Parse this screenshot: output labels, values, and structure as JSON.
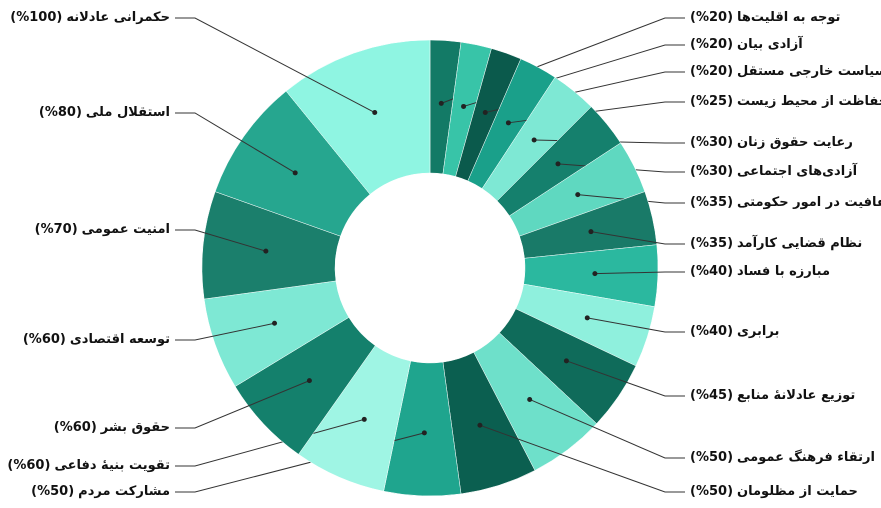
{
  "chart_data": {
    "type": "donut",
    "categories": [
      "توجه به اقلیت‌ها",
      "آزادی بیان",
      "سیاست خارجی مستقل",
      "حفاظت از محیط زیست",
      "رعایت حقوق زنان",
      "آزادی‌های اجتماعی",
      "شفافیت در امور حکومتی",
      "نظام قضایی کارآمد",
      "مبارزه با فساد",
      "برابری",
      "توزیع عادلانهٔ منابع",
      "ارتقاء فرهنگ عمومی",
      "حمایت از مظلومان",
      "مشارکت مردم",
      "تقویت بنیهٔ دفاعی",
      "حقوق بشر",
      "توسعه اقتصادی",
      "امنیت عمومی",
      "استقلال ملی",
      "حکمرانی عادلانه"
    ],
    "values": [
      20,
      20,
      20,
      25,
      30,
      30,
      35,
      35,
      40,
      40,
      45,
      50,
      50,
      50,
      60,
      60,
      60,
      70,
      80,
      100
    ],
    "value_labels": [
      "(20%)",
      "(20%)",
      "(20%)",
      "(25%)",
      "(30%)",
      "(30%)",
      "(35%)",
      "(35%)",
      "(40%)",
      "(40%)",
      "(45%)",
      "(50%)",
      "(50%)",
      "(50%)",
      "(60%)",
      "(60%)",
      "(60%)",
      "(70%)",
      "(80%)",
      "(100%)"
    ],
    "colors": [
      "#137a66",
      "#38c4a8",
      "#0b5a4c",
      "#1aa08a",
      "#7ee8d4",
      "#15806d",
      "#5fd8c0",
      "#197a68",
      "#2bb89f",
      "#8ff0dd",
      "#0f6b5a",
      "#6ee0ca",
      "#0b5f50",
      "#1fa58e",
      "#9ff5e4",
      "#14806c",
      "#7ee8d4",
      "#1b7f6c",
      "#26a68f",
      "#8ff5e2"
    ]
  }
}
